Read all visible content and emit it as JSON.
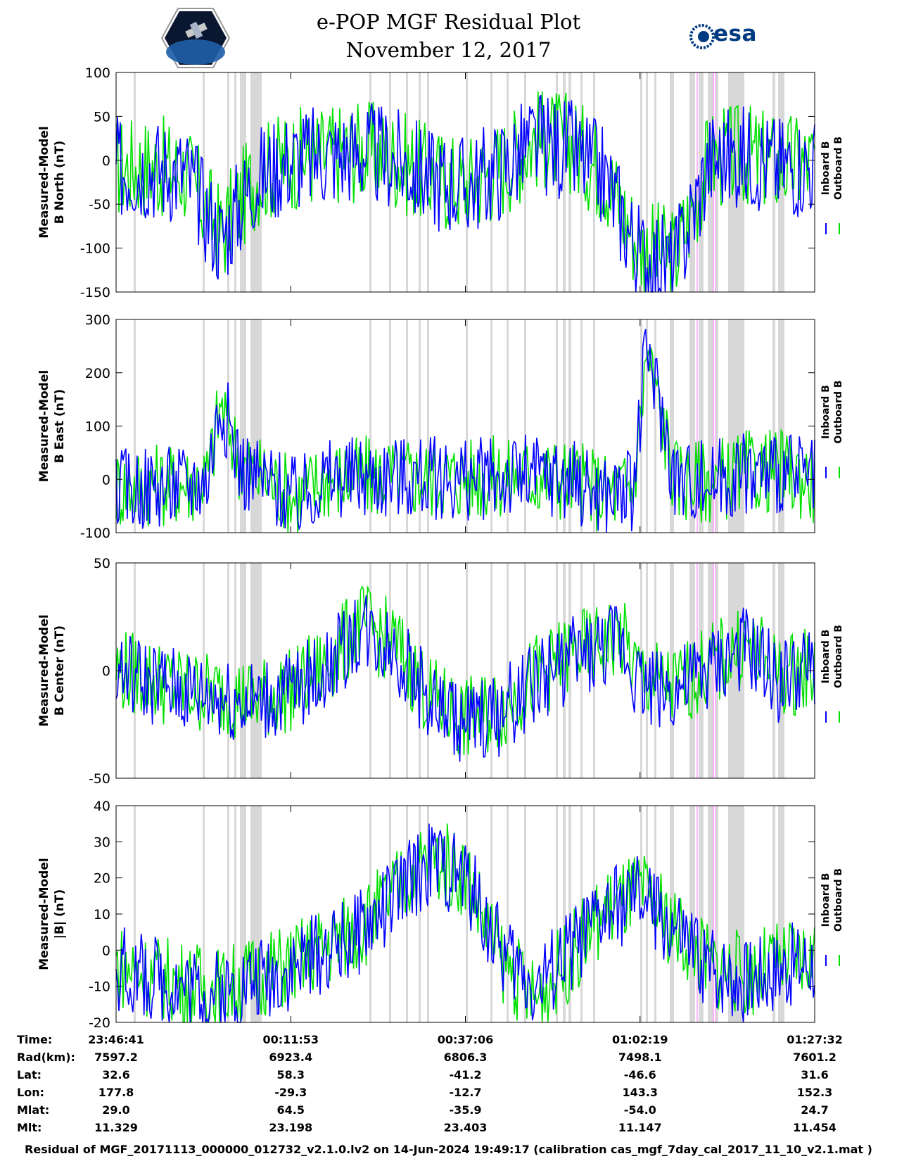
{
  "title_line1": "e-POP MGF Residual Plot",
  "title_line2": "November 12, 2017",
  "logos": {
    "left_icon": "cassiope-satellite-logo",
    "right_text": "esa"
  },
  "legend": {
    "inboard": "Inboard B",
    "outboard": "Outboard B",
    "inboard_color": "#0000ff",
    "outboard_color": "#00e000"
  },
  "colors": {
    "gap_bands": "#d8d8d8",
    "event_lines": "#ff88ff"
  },
  "chart_data": [
    {
      "type": "line",
      "ylabel_line1": "Measured-Model",
      "ylabel_line2": "B North (nT)",
      "ylim": [
        -150,
        100
      ],
      "yticks": [
        -150,
        -100,
        -50,
        0,
        50,
        100
      ],
      "series": [
        {
          "name": "Inboard B",
          "x": [
            0,
            5,
            10,
            15,
            20,
            25,
            30,
            35,
            40,
            45,
            50,
            55,
            60,
            65,
            70,
            75,
            80,
            85,
            90,
            95,
            100
          ],
          "values": [
            -10,
            -8,
            -15,
            -90,
            -20,
            0,
            5,
            10,
            0,
            -20,
            -30,
            -10,
            20,
            10,
            -20,
            -110,
            -120,
            0,
            5,
            -5,
            -5
          ]
        },
        {
          "name": "Outboard B",
          "x": [
            0,
            5,
            10,
            15,
            20,
            25,
            30,
            35,
            40,
            45,
            50,
            55,
            60,
            65,
            70,
            75,
            80,
            85,
            90,
            95,
            100
          ],
          "values": [
            -8,
            -6,
            -14,
            -85,
            -18,
            2,
            6,
            12,
            2,
            -18,
            -28,
            -8,
            25,
            20,
            -15,
            -100,
            -110,
            2,
            6,
            -4,
            -4
          ]
        }
      ]
    },
    {
      "type": "line",
      "ylabel_line1": "Measured-Model",
      "ylabel_line2": "B East (nT)",
      "ylim": [
        -100,
        300
      ],
      "yticks": [
        -100,
        0,
        100,
        200,
        300
      ],
      "series": [
        {
          "name": "Inboard B",
          "x": [
            0,
            5,
            10,
            13,
            15,
            18,
            22,
            26,
            30,
            40,
            50,
            60,
            65,
            70,
            74,
            76,
            80,
            85,
            90,
            95,
            100
          ],
          "values": [
            -20,
            -15,
            -10,
            0,
            150,
            20,
            -10,
            -40,
            0,
            5,
            0,
            5,
            0,
            -30,
            -20,
            250,
            0,
            -5,
            10,
            15,
            -5
          ]
        },
        {
          "name": "Outboard B",
          "x": [
            0,
            5,
            10,
            13,
            15,
            18,
            22,
            26,
            30,
            40,
            50,
            60,
            65,
            70,
            74,
            76,
            80,
            85,
            90,
            95,
            100
          ],
          "values": [
            -15,
            -10,
            -8,
            2,
            140,
            25,
            -5,
            -35,
            2,
            6,
            2,
            6,
            2,
            -25,
            -15,
            240,
            2,
            -3,
            12,
            17,
            -3
          ]
        }
      ]
    },
    {
      "type": "line",
      "ylabel_line1": "Measured-Model",
      "ylabel_line2": "B Center (nT)",
      "ylim": [
        -50,
        50
      ],
      "yticks": [
        -50,
        0,
        50
      ],
      "series": [
        {
          "name": "Inboard B",
          "x": [
            0,
            5,
            10,
            15,
            20,
            25,
            30,
            35,
            40,
            45,
            50,
            55,
            60,
            65,
            70,
            72,
            75,
            80,
            85,
            90,
            95,
            100
          ],
          "values": [
            0,
            -5,
            -10,
            -12,
            -15,
            -10,
            0,
            20,
            10,
            -15,
            -25,
            -20,
            -5,
            5,
            10,
            15,
            -5,
            -10,
            0,
            10,
            -5,
            0
          ]
        },
        {
          "name": "Outboard B",
          "x": [
            0,
            5,
            10,
            15,
            20,
            25,
            30,
            35,
            40,
            45,
            50,
            55,
            60,
            65,
            70,
            72,
            75,
            80,
            85,
            90,
            95,
            100
          ],
          "values": [
            1,
            -4,
            -9,
            -11,
            -14,
            -9,
            2,
            22,
            12,
            -13,
            -23,
            -18,
            -3,
            7,
            12,
            17,
            -3,
            -8,
            2,
            12,
            -3,
            2
          ]
        }
      ]
    },
    {
      "type": "line",
      "ylabel_line1": "Measured-Model",
      "ylabel_line2": "|B| (nT)",
      "ylim": [
        -20,
        40
      ],
      "yticks": [
        -20,
        -10,
        0,
        10,
        20,
        30,
        40
      ],
      "series": [
        {
          "name": "Inboard B",
          "x": [
            0,
            5,
            10,
            15,
            20,
            25,
            30,
            35,
            40,
            45,
            50,
            55,
            60,
            65,
            70,
            75,
            80,
            85,
            90,
            95,
            100
          ],
          "values": [
            -5,
            -8,
            -10,
            -12,
            -8,
            -5,
            0,
            5,
            15,
            25,
            20,
            0,
            -10,
            0,
            10,
            15,
            5,
            -5,
            -8,
            -5,
            -3
          ]
        },
        {
          "name": "Outboard B",
          "x": [
            0,
            5,
            10,
            15,
            20,
            25,
            30,
            35,
            40,
            45,
            50,
            55,
            60,
            65,
            70,
            75,
            80,
            85,
            90,
            95,
            100
          ],
          "values": [
            -4,
            -7,
            -9,
            -11,
            -7,
            -4,
            1,
            6,
            16,
            26,
            21,
            -2,
            -14,
            -2,
            11,
            16,
            6,
            -4,
            -7,
            -4,
            -2
          ]
        }
      ]
    }
  ],
  "table": {
    "rows": [
      {
        "label": "Time:",
        "values": [
          "23:46:41",
          "00:11:53",
          "00:37:06",
          "01:02:19",
          "01:27:32"
        ]
      },
      {
        "label": "Rad(km):",
        "values": [
          "7597.2",
          "6923.4",
          "6806.3",
          "7498.1",
          "7601.2"
        ]
      },
      {
        "label": "Lat:",
        "values": [
          "32.6",
          "58.3",
          "-41.2",
          "-46.6",
          "31.6"
        ]
      },
      {
        "label": "Lon:",
        "values": [
          "177.8",
          "-29.3",
          "-12.7",
          "143.3",
          "152.3"
        ]
      },
      {
        "label": "Mlat:",
        "values": [
          "29.0",
          "64.5",
          "-35.9",
          "-54.0",
          "24.7"
        ]
      },
      {
        "label": "Mlt:",
        "values": [
          "11.329",
          "23.198",
          "23.403",
          "11.147",
          "11.454"
        ]
      }
    ]
  },
  "footnote": "Residual of MGF_20171113_000000_012732_v2.1.0.lv2 on 14-Jun-2024 19:49:17 (calibration cas_mgf_7day_cal_2017_11_10_v2.1.mat )"
}
